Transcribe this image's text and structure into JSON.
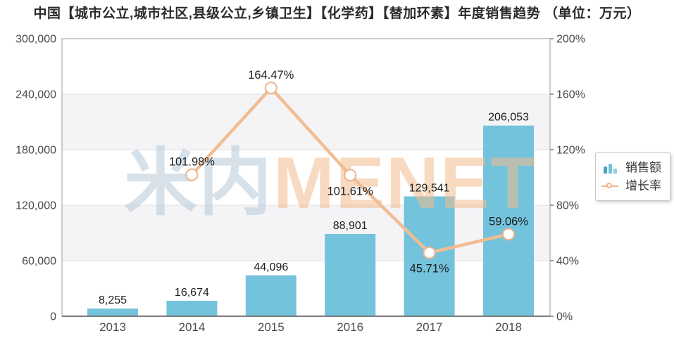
{
  "title": "中国【城市公立,城市社区,县级公立,乡镇卫生】【化学药】【替加环素】年度销售趋势 （单位：万元）",
  "watermark": {
    "cjk": "米内",
    "latin": "MENET"
  },
  "legend": {
    "items": [
      {
        "label": "销售额",
        "icon": "bar-series-icon"
      },
      {
        "label": "增长率",
        "icon": "line-series-icon"
      }
    ]
  },
  "colors": {
    "bar": "#74c3dc",
    "line": "#f2bd92",
    "marker_stroke": "#edb38a",
    "band": "#f4f3f5",
    "gridline": "#e2e0e3",
    "plot_border": "#9b9b9b",
    "axis_line": "#7d7d7d",
    "axis_text": "#4a4a4a",
    "label_text": "#1c1c1c",
    "watermark_cjk": "#b5cad9",
    "watermark_latin": "#f3bd8d"
  },
  "chart_data": {
    "type": "bar",
    "title": "中国【城市公立,城市社区,县级公立,乡镇卫生】【化学药】【替加环素】年度销售趋势",
    "unit": "万元",
    "categories": [
      "2013",
      "2014",
      "2015",
      "2016",
      "2017",
      "2018"
    ],
    "series": [
      {
        "name": "销售额",
        "type": "bar",
        "axis": "left",
        "color": "#74c3dc",
        "values": [
          8255,
          16674,
          44096,
          88901,
          129541,
          206053
        ],
        "labels": [
          "8,255",
          "16,674",
          "44,096",
          "88,901",
          "129,541",
          "206,053"
        ]
      },
      {
        "name": "增长率",
        "type": "line",
        "axis": "right",
        "color": "#f2bd92",
        "values": [
          null,
          101.98,
          164.47,
          101.61,
          45.71,
          59.06
        ],
        "labels": [
          null,
          "101.98%",
          "164.47%",
          "101.61%",
          "45.71%",
          "59.06%"
        ],
        "label_placement": [
          null,
          "above",
          "above",
          "below",
          "below",
          "above"
        ]
      }
    ],
    "left_axis": {
      "min": 0,
      "max": 300000,
      "ticks": [
        "300,000",
        "240,000",
        "180,000",
        "120,000",
        "60,000",
        "0"
      ]
    },
    "right_axis": {
      "min": 0,
      "max": 200,
      "ticks": [
        "200%",
        "160%",
        "120%",
        "80%",
        "40%",
        "0%"
      ]
    },
    "x_axis": {
      "ticks": [
        "2013",
        "2014",
        "2015",
        "2016",
        "2017",
        "2018"
      ]
    },
    "grid": true,
    "legend_position": "right"
  }
}
